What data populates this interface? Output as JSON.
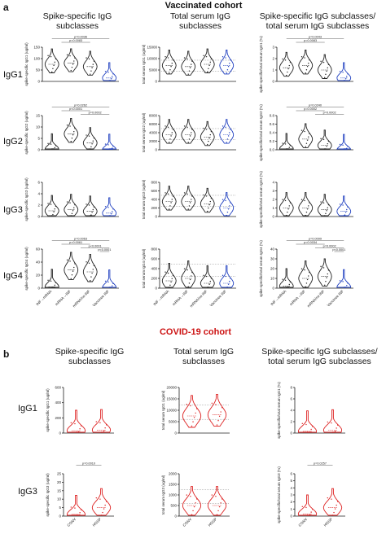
{
  "panel_a": {
    "letter": "a",
    "title": "Vaccinated cohort",
    "title_color": "#111111",
    "col_titles": [
      "Spike-specific IgG\nsubclasses",
      "Total serum IgG\nsubclasses",
      "Spike-specific IgG subclasses/\ntotal serum IgG subclasses"
    ],
    "row_labels": [
      "IgG1",
      "IgG2",
      "IgG3",
      "IgG4"
    ],
    "groups": [
      "INF→mRNA",
      "mRNA→INF",
      "mRNA/no INF",
      "Vaccinee INF"
    ],
    "colors": [
      "#222222",
      "#222222",
      "#222222",
      "#2040c0"
    ]
  },
  "panel_b": {
    "letter": "b",
    "title": "COVID-19 cohort",
    "title_color": "#cc1111",
    "col_titles": [
      "Spike-specific IgG\nsubclasses",
      "Total serum IgG\nsubclasses",
      "Spike-specific IgG subclasses/\ntotal serum IgG subclasses"
    ],
    "row_labels": [
      "IgG1",
      "IgG3"
    ],
    "groups": [
      "CONV",
      "HOSP"
    ],
    "color": "#dd2222"
  },
  "chart_data": [
    {
      "type": "violin",
      "panel": "a",
      "row": "IgG1",
      "column": "spike-specific",
      "ylabel": "spike-specific IgG1 (ug/ml)",
      "ylim": [
        0,
        150
      ],
      "yticks": [
        "0",
        "50",
        "100",
        "150"
      ],
      "pvalues": [
        "p=0.0036",
        "p=0.0083"
      ],
      "medians": [
        75,
        80,
        65,
        15
      ]
    },
    {
      "type": "violin",
      "panel": "a",
      "row": "IgG1",
      "column": "total",
      "ylabel": "total serum IgG1 (ug/ml)",
      "ylim": [
        0,
        15000
      ],
      "yticks": [
        "0",
        "5000",
        "10000",
        "15000"
      ],
      "medians": [
        7000,
        6500,
        7500,
        7000
      ]
    },
    {
      "type": "violin",
      "panel": "a",
      "row": "IgG1",
      "column": "ratio",
      "ylabel": "spike-specific/total serum IgG1 (%)",
      "ylim": [
        0,
        3
      ],
      "yticks": [
        "0",
        "1",
        "2",
        "3"
      ],
      "pvalues": [
        "p=0.0043",
        "p=0.0083"
      ],
      "medians": [
        1.2,
        1.4,
        1.0,
        0.3
      ]
    },
    {
      "type": "violin",
      "panel": "a",
      "row": "IgG2",
      "column": "spike-specific",
      "ylabel": "spike-specific IgG2 (ug/ml)",
      "ylim": [
        0,
        15
      ],
      "yticks": [
        "0",
        "5",
        "10",
        "15"
      ],
      "pvalues": [
        "p=0.0262",
        "p<0.0001",
        "p=0.0002"
      ],
      "medians": [
        0.3,
        7,
        3,
        0.1
      ]
    },
    {
      "type": "violin",
      "panel": "a",
      "row": "IgG2",
      "column": "total",
      "ylabel": "total serum IgG2 (ug/ml)",
      "ylim": [
        0,
        8000
      ],
      "yticks": [
        "0",
        "2000",
        "4000",
        "6000",
        "8000"
      ],
      "medians": [
        3500,
        3500,
        3000,
        3500
      ]
    },
    {
      "type": "violin",
      "panel": "a",
      "row": "IgG2",
      "column": "ratio",
      "ylabel": "spike-specific/total serum IgG2 (%)",
      "ylim": [
        0,
        0.8
      ],
      "yticks": [
        "0.0",
        "0.2",
        "0.4",
        "0.6",
        "0.8"
      ],
      "pvalues": [
        "p=0.0240",
        "p=0.0002",
        "p=0.0002"
      ],
      "medians": [
        0.02,
        0.25,
        0.1,
        0.0
      ]
    },
    {
      "type": "violin",
      "panel": "a",
      "row": "IgG3",
      "column": "spike-specific",
      "ylabel": "spike-specific IgG3 (ug/ml)",
      "ylim": [
        0,
        6
      ],
      "yticks": [
        "0",
        "2",
        "4",
        "6"
      ],
      "medians": [
        1.0,
        1.2,
        0.9,
        0.6
      ]
    },
    {
      "type": "violin",
      "panel": "a",
      "row": "IgG3",
      "column": "total",
      "ylabel": "total serum IgG3 (ug/ml)",
      "ylim": [
        0,
        800
      ],
      "yticks": [
        "0",
        "200",
        "400",
        "600",
        "800"
      ],
      "medians": [
        350,
        350,
        300,
        200
      ]
    },
    {
      "type": "violin",
      "panel": "a",
      "row": "IgG3",
      "column": "ratio",
      "ylabel": "spike-specific/total serum IgG3 (%)",
      "ylim": [
        0,
        4
      ],
      "yticks": [
        "0",
        "1",
        "2",
        "3",
        "4"
      ],
      "medians": [
        1.0,
        1.0,
        0.8,
        0.6
      ]
    },
    {
      "type": "violin",
      "panel": "a",
      "row": "IgG4",
      "column": "spike-specific",
      "ylabel": "spike-specific IgG4 (ug/ml)",
      "ylim": [
        0,
        60
      ],
      "yticks": [
        "0",
        "20",
        "40",
        "60"
      ],
      "pvalues": [
        "p=0.0063",
        "p=0.0061",
        "p<0.0001",
        "p<0.0001"
      ],
      "medians": [
        2,
        28,
        25,
        1
      ]
    },
    {
      "type": "violin",
      "panel": "a",
      "row": "IgG4",
      "column": "total",
      "ylabel": "total serum IgG4 (ug/ml)",
      "ylim": [
        0,
        800
      ],
      "yticks": [
        "0",
        "200",
        "400",
        "600",
        "800"
      ],
      "medians": [
        150,
        200,
        100,
        100
      ]
    },
    {
      "type": "violin",
      "panel": "a",
      "row": "IgG4",
      "column": "ratio",
      "ylabel": "spike-specific/total serum IgG4 (%)",
      "ylim": [
        0,
        40
      ],
      "yticks": [
        "0",
        "10",
        "20",
        "30",
        "40"
      ],
      "pvalues": [
        "p=0.0099",
        "p=0.0034",
        "p=0.0002",
        "p<0.0001"
      ],
      "medians": [
        2,
        10,
        12,
        1
      ]
    },
    {
      "type": "violin",
      "panel": "b",
      "row": "IgG1",
      "column": "spike-specific",
      "ylabel": "spike-specific IgG1 (ug/ml)",
      "ylim": [
        0,
        600
      ],
      "yticks": [
        "0",
        "200",
        "400",
        "600"
      ],
      "medians": [
        30,
        40
      ]
    },
    {
      "type": "violin",
      "panel": "b",
      "row": "IgG1",
      "column": "total",
      "ylabel": "total serum IgG1 (ug/ml)",
      "ylim": [
        0,
        20000
      ],
      "yticks": [
        "0",
        "5000",
        "10000",
        "15000",
        "20000"
      ],
      "medians": [
        7500,
        8000
      ]
    },
    {
      "type": "violin",
      "panel": "b",
      "row": "IgG1",
      "column": "ratio",
      "ylabel": "spike-specific/total serum IgG1 (%)",
      "ylim": [
        0,
        8
      ],
      "yticks": [
        "0",
        "2",
        "4",
        "6",
        "8"
      ],
      "medians": [
        0.3,
        0.5
      ]
    },
    {
      "type": "violin",
      "panel": "b",
      "row": "IgG3",
      "column": "spike-specific",
      "ylabel": "spike-specific IgG3 (ug/ml)",
      "ylim": [
        0,
        25
      ],
      "yticks": [
        "0",
        "5",
        "10",
        "15",
        "20",
        "25"
      ],
      "pvalues": [
        "p=0.0010"
      ],
      "medians": [
        1,
        5
      ]
    },
    {
      "type": "violin",
      "panel": "b",
      "row": "IgG3",
      "column": "total",
      "ylabel": "total serum IgG3 (ug/ml)",
      "ylim": [
        0,
        2000
      ],
      "yticks": [
        "0",
        "500",
        "1000",
        "1500",
        "2000"
      ],
      "medians": [
        500,
        500
      ]
    },
    {
      "type": "violin",
      "panel": "b",
      "row": "IgG3",
      "column": "ratio",
      "ylabel": "spike-specific/total serum IgG3 (%)",
      "ylim": [
        0,
        6
      ],
      "yticks": [
        "0",
        "1",
        "2",
        "3",
        "4",
        "5",
        "6"
      ],
      "pvalues": [
        "p=0.0257"
      ],
      "medians": [
        0.3,
        1.2
      ]
    }
  ]
}
